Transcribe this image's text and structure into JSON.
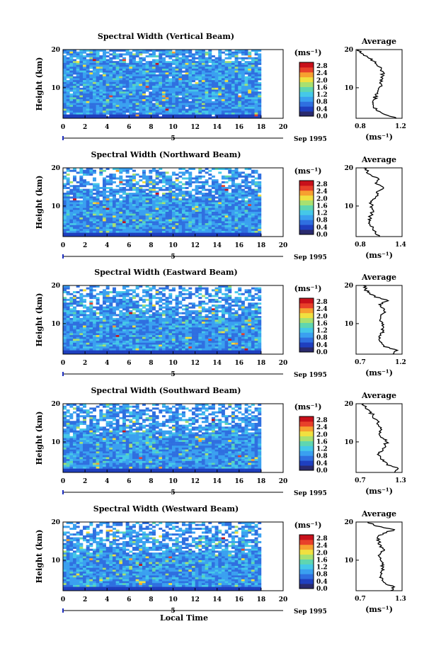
{
  "x_axis_label": "Local Time",
  "date_label": "Sep 1995",
  "day_marker": "5",
  "colorbar": {
    "unit": "(ms⁻¹)",
    "ticks": [
      "2.8",
      "2.4",
      "2.0",
      "1.6",
      "1.2",
      "0.8",
      "0.4",
      "0.0"
    ]
  },
  "colors": {
    "scale": [
      "#2a2a6e",
      "#1f3fbf",
      "#2f6fe0",
      "#3aa0f0",
      "#45c8e8",
      "#5fd6b0",
      "#a8e070",
      "#f0e040",
      "#f7a030",
      "#e8402a",
      "#c8101a"
    ]
  },
  "chart_data": [
    {
      "type": "heatmap",
      "title": "Spectral Width (Vertical Beam)",
      "ylabel": "Height (km)",
      "xlim": [
        0,
        20
      ],
      "ylim": [
        2,
        20
      ],
      "x_ticks": [
        "0",
        "2",
        "4",
        "6",
        "8",
        "10",
        "12",
        "14",
        "16",
        "18",
        "20"
      ],
      "y_ticks": [
        "20",
        "10"
      ],
      "data_coverage_hours": [
        0,
        18
      ],
      "colorbar_range": [
        0.0,
        3.0
      ],
      "average_profile": {
        "title": "Average",
        "xlabel": "(ms⁻¹)",
        "xlim": [
          0.8,
          1.2
        ],
        "x_ticks": [
          "0.8",
          "1.2"
        ],
        "y_ticks": [
          "20",
          "10"
        ],
        "height_km": [
          2,
          3,
          4,
          5,
          6,
          7,
          8,
          9,
          10,
          11,
          12,
          13,
          14,
          15,
          16,
          17,
          18,
          19,
          20
        ],
        "width_ms": [
          1.15,
          1.05,
          0.98,
          0.95,
          0.95,
          0.96,
          0.97,
          0.99,
          1.0,
          1.02,
          1.01,
          1.03,
          1.04,
          1.02,
          0.98,
          0.95,
          0.9,
          0.85,
          0.82
        ]
      }
    },
    {
      "type": "heatmap",
      "title": "Spectral Width (Northward Beam)",
      "ylabel": "Height (km)",
      "xlim": [
        0,
        20
      ],
      "ylim": [
        2,
        20
      ],
      "x_ticks": [
        "0",
        "2",
        "4",
        "6",
        "8",
        "10",
        "12",
        "14",
        "16",
        "18",
        "20"
      ],
      "y_ticks": [
        "20",
        "10"
      ],
      "data_coverage_hours": [
        0,
        18
      ],
      "colorbar_range": [
        0.0,
        3.0
      ],
      "average_profile": {
        "title": "Average",
        "xlabel": "(ms⁻¹)",
        "xlim": [
          0.8,
          1.4
        ],
        "x_ticks": [
          "0.8",
          "1.4"
        ],
        "y_ticks": [
          "20",
          "10"
        ],
        "height_km": [
          2,
          3,
          4,
          5,
          6,
          7,
          8,
          9,
          10,
          11,
          12,
          13,
          14,
          15,
          16,
          17,
          18,
          19,
          20
        ],
        "width_ms": [
          1.1,
          1.05,
          1.02,
          0.98,
          0.97,
          0.99,
          1.0,
          1.02,
          1.01,
          1.0,
          1.05,
          1.08,
          1.1,
          1.15,
          1.05,
          1.1,
          1.0,
          0.95,
          0.9
        ]
      }
    },
    {
      "type": "heatmap",
      "title": "Spectral Width (Eastward Beam)",
      "ylabel": "Height (km)",
      "xlim": [
        0,
        20
      ],
      "ylim": [
        2,
        20
      ],
      "x_ticks": [
        "0",
        "2",
        "4",
        "6",
        "8",
        "10",
        "12",
        "14",
        "16",
        "18",
        "20"
      ],
      "y_ticks": [
        "20",
        "10"
      ],
      "data_coverage_hours": [
        0,
        18
      ],
      "colorbar_range": [
        0.0,
        3.0
      ],
      "average_profile": {
        "title": "Average",
        "xlabel": "(ms⁻¹)",
        "xlim": [
          0.7,
          1.2
        ],
        "x_ticks": [
          "0.7",
          "1.2"
        ],
        "y_ticks": [
          "20",
          "10"
        ],
        "height_km": [
          2,
          3,
          4,
          5,
          6,
          7,
          8,
          9,
          10,
          11,
          12,
          13,
          14,
          15,
          16,
          17,
          18,
          19,
          20
        ],
        "width_ms": [
          1.1,
          1.15,
          1.0,
          0.98,
          0.95,
          0.97,
          0.99,
          1.0,
          0.98,
          0.96,
          0.97,
          1.02,
          1.0,
          0.95,
          1.05,
          0.9,
          0.85,
          0.8,
          0.78
        ]
      }
    },
    {
      "type": "heatmap",
      "title": "Spectral Width (Southward Beam)",
      "ylabel": "Height (km)",
      "xlim": [
        0,
        20
      ],
      "ylim": [
        2,
        20
      ],
      "x_ticks": [
        "0",
        "2",
        "4",
        "6",
        "8",
        "10",
        "12",
        "14",
        "16",
        "18",
        "20"
      ],
      "y_ticks": [
        "20",
        "10"
      ],
      "data_coverage_hours": [
        0,
        18
      ],
      "colorbar_range": [
        0.0,
        3.0
      ],
      "average_profile": {
        "title": "Average",
        "xlabel": "(ms⁻¹)",
        "xlim": [
          0.7,
          1.3
        ],
        "x_ticks": [
          "0.7",
          "1.3"
        ],
        "y_ticks": [
          "20",
          "10"
        ],
        "height_km": [
          2,
          3,
          4,
          5,
          6,
          7,
          8,
          9,
          10,
          11,
          12,
          13,
          14,
          15,
          16,
          17,
          18,
          19,
          20
        ],
        "width_ms": [
          1.2,
          1.25,
          1.1,
          1.05,
          1.02,
          1.0,
          1.05,
          1.08,
          1.1,
          1.05,
          1.0,
          1.02,
          1.0,
          0.98,
          0.95,
          0.92,
          0.88,
          0.82,
          0.8
        ]
      }
    },
    {
      "type": "heatmap",
      "title": "Spectral Width (Westward Beam)",
      "ylabel": "Height (km)",
      "xlim": [
        0,
        20
      ],
      "ylim": [
        2,
        20
      ],
      "x_ticks": [
        "0",
        "2",
        "4",
        "6",
        "8",
        "10",
        "12",
        "14",
        "16",
        "18",
        "20"
      ],
      "y_ticks": [
        "20",
        "10"
      ],
      "data_coverage_hours": [
        0,
        18
      ],
      "colorbar_range": [
        0.0,
        3.0
      ],
      "average_profile": {
        "title": "Average",
        "xlabel": "(ms⁻¹)",
        "xlim": [
          0.7,
          1.3
        ],
        "x_ticks": [
          "0.7",
          "1.3"
        ],
        "y_ticks": [
          "20",
          "10"
        ],
        "height_km": [
          2,
          3,
          4,
          5,
          6,
          7,
          8,
          9,
          10,
          11,
          12,
          13,
          14,
          15,
          16,
          17,
          18,
          19,
          20
        ],
        "width_ms": [
          1.15,
          1.2,
          1.08,
          1.05,
          1.02,
          1.03,
          1.05,
          1.04,
          1.02,
          1.0,
          1.03,
          1.05,
          1.02,
          1.0,
          0.98,
          1.05,
          1.2,
          0.95,
          0.85
        ]
      }
    }
  ]
}
